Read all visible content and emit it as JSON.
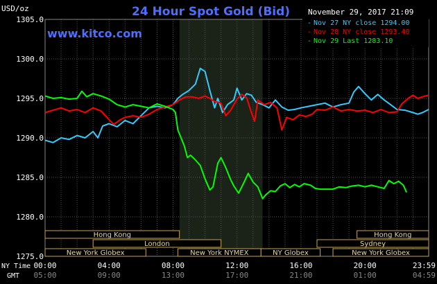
{
  "header": {
    "title": "24 Hour Spot Gold (Bid)",
    "unit_label": "USD/oz",
    "timestamp": "November 29, 2017 21:09",
    "site": "www.kitco.com"
  },
  "legend": [
    {
      "text": "Nov 27 NY close 1294.00",
      "color": "#33ccff"
    },
    {
      "text": "Nov 28 NY close 1293.40",
      "color": "#ff0000"
    },
    {
      "text": "Nov 29 Last 1283.10",
      "color": "#00ff00"
    }
  ],
  "axis_rows": {
    "ny_label": "NY Time",
    "gmt_label": "GMT"
  },
  "sessions": {
    "row1": [
      {
        "label": "Hong Kong",
        "start": 0,
        "end": 8.4
      },
      {
        "label": "Hong Kong",
        "start": 19.5,
        "end": 24
      }
    ],
    "row2": [
      {
        "label": "London",
        "start": 3,
        "end": 11
      },
      {
        "label": "Sydney",
        "start": 17,
        "end": 24
      }
    ],
    "row3": [
      {
        "label": "New York Globex",
        "start": 0,
        "end": 6.3
      },
      {
        "label": "New York NYMEX",
        "start": 8.3,
        "end": 13.5
      },
      {
        "label": "NY Globex",
        "start": 13.5,
        "end": 17.2
      },
      {
        "label": "New York Globex",
        "start": 18,
        "end": 24
      }
    ]
  },
  "chart_data": {
    "type": "line",
    "title": "24 Hour Spot Gold (Bid)",
    "ylabel": "USD/oz",
    "xlim": [
      0,
      23.983
    ],
    "ylim": [
      1275.0,
      1305.0
    ],
    "yticks": [
      {
        "value": 1275.0,
        "label": "1275.0"
      },
      {
        "value": 1280.0,
        "label": "1280.0"
      },
      {
        "value": 1285.0,
        "label": "1285.0"
      },
      {
        "value": 1290.0,
        "label": "1290.0"
      },
      {
        "value": 1295.0,
        "label": "1295.0"
      },
      {
        "value": 1300.0,
        "label": "1300.0"
      },
      {
        "value": 1305.0,
        "label": "1305.0"
      }
    ],
    "xticks": [
      {
        "value": 0,
        "ny": "00:00",
        "gmt": "05:00"
      },
      {
        "value": 4,
        "ny": "04:00",
        "gmt": "09:00"
      },
      {
        "value": 8,
        "ny": "08:00",
        "gmt": "13:00"
      },
      {
        "value": 12,
        "ny": "12:00",
        "gmt": "17:00"
      },
      {
        "value": 16,
        "ny": "16:00",
        "gmt": "21:00"
      },
      {
        "value": 20,
        "ny": "20:00",
        "gmt": "01:00"
      },
      {
        "value": 23.983,
        "ny": "23:59",
        "gmt": "04:59"
      }
    ],
    "shaded_region": {
      "start": 8.4,
      "end": 13.6
    },
    "grid": true,
    "legend_position": "top-right",
    "series": [
      {
        "name": "Nov 27 NY close 1294.00",
        "color": "#33ccff",
        "points": [
          [
            0,
            1289.7
          ],
          [
            0.5,
            1289.4
          ],
          [
            1,
            1290.0
          ],
          [
            1.5,
            1289.8
          ],
          [
            2,
            1290.3
          ],
          [
            2.5,
            1290.0
          ],
          [
            3,
            1290.8
          ],
          [
            3.3,
            1290.0
          ],
          [
            3.6,
            1291.5
          ],
          [
            4,
            1291.8
          ],
          [
            4.5,
            1291.4
          ],
          [
            5,
            1292.2
          ],
          [
            5.5,
            1291.8
          ],
          [
            6,
            1292.8
          ],
          [
            6.5,
            1293.8
          ],
          [
            7,
            1294.0
          ],
          [
            7.5,
            1293.8
          ],
          [
            8,
            1294.2
          ],
          [
            8.3,
            1295.0
          ],
          [
            8.6,
            1295.5
          ],
          [
            9,
            1296.0
          ],
          [
            9.4,
            1296.8
          ],
          [
            9.7,
            1298.8
          ],
          [
            10,
            1298.4
          ],
          [
            10.3,
            1296.0
          ],
          [
            10.6,
            1293.8
          ],
          [
            10.8,
            1295.0
          ],
          [
            11.1,
            1293.2
          ],
          [
            11.4,
            1294.2
          ],
          [
            11.8,
            1294.8
          ],
          [
            12,
            1296.3
          ],
          [
            12.3,
            1294.8
          ],
          [
            12.6,
            1295.6
          ],
          [
            12.9,
            1295.4
          ],
          [
            13.2,
            1294.5
          ],
          [
            13.6,
            1294.2
          ],
          [
            14,
            1293.8
          ],
          [
            14.4,
            1294.8
          ],
          [
            14.8,
            1293.9
          ],
          [
            15.2,
            1293.5
          ],
          [
            15.6,
            1293.6
          ],
          [
            16,
            1293.8
          ],
          [
            16.5,
            1294.0
          ],
          [
            17,
            1294.2
          ],
          [
            17.5,
            1294.4
          ],
          [
            18,
            1293.9
          ],
          [
            18.5,
            1294.2
          ],
          [
            19,
            1294.4
          ],
          [
            19.3,
            1295.8
          ],
          [
            19.6,
            1296.5
          ],
          [
            20,
            1295.6
          ],
          [
            20.4,
            1294.8
          ],
          [
            20.8,
            1295.5
          ],
          [
            21.2,
            1294.8
          ],
          [
            21.6,
            1294.2
          ],
          [
            22,
            1293.6
          ],
          [
            22.5,
            1293.5
          ],
          [
            23,
            1293.2
          ],
          [
            23.3,
            1293.0
          ],
          [
            23.6,
            1293.2
          ],
          [
            23.983,
            1293.6
          ]
        ]
      },
      {
        "name": "Nov 28 NY close 1293.40",
        "color": "#ff0000",
        "points": [
          [
            0,
            1293.2
          ],
          [
            0.5,
            1293.5
          ],
          [
            1,
            1293.8
          ],
          [
            1.5,
            1293.4
          ],
          [
            2,
            1293.6
          ],
          [
            2.5,
            1293.2
          ],
          [
            3,
            1293.8
          ],
          [
            3.5,
            1293.4
          ],
          [
            4,
            1292.3
          ],
          [
            4.3,
            1291.7
          ],
          [
            4.7,
            1292.3
          ],
          [
            5,
            1292.6
          ],
          [
            5.5,
            1292.8
          ],
          [
            6,
            1292.6
          ],
          [
            6.5,
            1293.0
          ],
          [
            7,
            1293.6
          ],
          [
            7.5,
            1293.9
          ],
          [
            8,
            1294.2
          ],
          [
            8.4,
            1294.8
          ],
          [
            8.8,
            1295.2
          ],
          [
            9.2,
            1295.2
          ],
          [
            9.6,
            1295.0
          ],
          [
            10,
            1295.3
          ],
          [
            10.3,
            1295.0
          ],
          [
            10.6,
            1294.6
          ],
          [
            11,
            1294.4
          ],
          [
            11.3,
            1292.8
          ],
          [
            11.6,
            1293.5
          ],
          [
            12,
            1294.9
          ],
          [
            12.3,
            1295.5
          ],
          [
            12.6,
            1295.1
          ],
          [
            12.9,
            1293.2
          ],
          [
            13.1,
            1292.1
          ],
          [
            13.3,
            1294.8
          ],
          [
            13.7,
            1294.2
          ],
          [
            14.1,
            1294.5
          ],
          [
            14.5,
            1293.8
          ],
          [
            14.8,
            1291.0
          ],
          [
            15.1,
            1292.6
          ],
          [
            15.5,
            1292.3
          ],
          [
            15.9,
            1292.9
          ],
          [
            16.3,
            1292.7
          ],
          [
            16.7,
            1293.0
          ],
          [
            17,
            1293.6
          ],
          [
            17.5,
            1293.5
          ],
          [
            18,
            1293.9
          ],
          [
            18.5,
            1293.4
          ],
          [
            19,
            1293.6
          ],
          [
            19.5,
            1293.4
          ],
          [
            20,
            1293.5
          ],
          [
            20.5,
            1293.2
          ],
          [
            21,
            1293.6
          ],
          [
            21.5,
            1293.2
          ],
          [
            22,
            1293.3
          ],
          [
            22.3,
            1294.3
          ],
          [
            22.7,
            1295.0
          ],
          [
            23,
            1295.4
          ],
          [
            23.3,
            1295.0
          ],
          [
            23.6,
            1295.2
          ],
          [
            23.983,
            1295.4
          ]
        ]
      },
      {
        "name": "Nov 29 Last 1283.10",
        "color": "#00ff00",
        "points": [
          [
            0,
            1295.3
          ],
          [
            0.5,
            1295.0
          ],
          [
            1,
            1295.1
          ],
          [
            1.5,
            1294.9
          ],
          [
            2,
            1295.0
          ],
          [
            2.3,
            1295.9
          ],
          [
            2.6,
            1295.2
          ],
          [
            3,
            1295.6
          ],
          [
            3.5,
            1295.3
          ],
          [
            4,
            1294.9
          ],
          [
            4.5,
            1294.2
          ],
          [
            5,
            1293.9
          ],
          [
            5.5,
            1294.2
          ],
          [
            6,
            1294.0
          ],
          [
            6.5,
            1293.8
          ],
          [
            7,
            1294.3
          ],
          [
            7.5,
            1294.0
          ],
          [
            8,
            1293.6
          ],
          [
            8.15,
            1293.2
          ],
          [
            8.3,
            1291.0
          ],
          [
            8.5,
            1290.0
          ],
          [
            8.7,
            1289.0
          ],
          [
            8.9,
            1287.5
          ],
          [
            9.1,
            1287.8
          ],
          [
            9.4,
            1287.2
          ],
          [
            9.7,
            1286.5
          ],
          [
            10,
            1284.8
          ],
          [
            10.3,
            1283.4
          ],
          [
            10.5,
            1283.8
          ],
          [
            10.8,
            1286.8
          ],
          [
            11,
            1287.5
          ],
          [
            11.3,
            1286.2
          ],
          [
            11.6,
            1284.7
          ],
          [
            11.8,
            1283.9
          ],
          [
            12.1,
            1283.0
          ],
          [
            12.4,
            1284.2
          ],
          [
            12.7,
            1285.5
          ],
          [
            13,
            1284.4
          ],
          [
            13.3,
            1283.8
          ],
          [
            13.6,
            1282.3
          ],
          [
            13.8,
            1282.8
          ],
          [
            14.1,
            1283.3
          ],
          [
            14.4,
            1283.2
          ],
          [
            14.7,
            1283.9
          ],
          [
            15,
            1284.2
          ],
          [
            15.3,
            1283.7
          ],
          [
            15.6,
            1284.1
          ],
          [
            15.9,
            1283.8
          ],
          [
            16.2,
            1284.2
          ],
          [
            16.6,
            1284.0
          ],
          [
            16.9,
            1283.6
          ],
          [
            17.2,
            1283.5
          ],
          [
            17.6,
            1283.5
          ],
          [
            18,
            1283.5
          ],
          [
            18.4,
            1283.8
          ],
          [
            18.8,
            1283.7
          ],
          [
            19.2,
            1283.9
          ],
          [
            19.6,
            1284.0
          ],
          [
            20,
            1283.8
          ],
          [
            20.4,
            1284.0
          ],
          [
            20.8,
            1283.8
          ],
          [
            21.2,
            1283.6
          ],
          [
            21.5,
            1284.6
          ],
          [
            21.8,
            1284.2
          ],
          [
            22.1,
            1284.5
          ],
          [
            22.4,
            1284.0
          ],
          [
            22.6,
            1283.1
          ]
        ]
      }
    ]
  }
}
